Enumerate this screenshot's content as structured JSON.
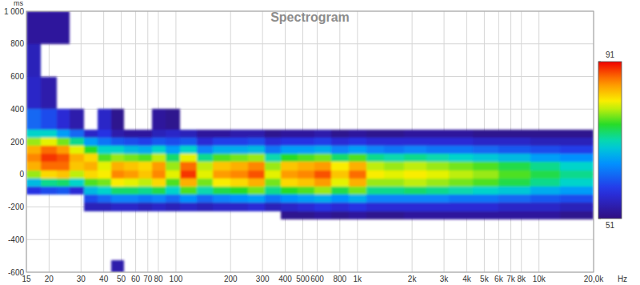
{
  "chart_data": {
    "type": "heatmap",
    "title": "Spectrogram",
    "xlabel": "Hz",
    "ylabel": "ms",
    "log": "x",
    "grid": true,
    "xlim": [
      15,
      20000
    ],
    "ylim": [
      -600,
      1000
    ],
    "xticks": [
      15,
      20,
      30,
      40,
      50,
      60,
      70,
      80,
      100,
      200,
      300,
      400,
      500,
      600,
      800,
      {
        "value": 1000,
        "label": "1k"
      },
      {
        "value": 2000,
        "label": "2k"
      },
      {
        "value": 3000,
        "label": "3k"
      },
      {
        "value": 4000,
        "label": "4k"
      },
      {
        "value": 5000,
        "label": "5k"
      },
      {
        "value": 6000,
        "label": "6k"
      },
      {
        "value": 7000,
        "label": "7k"
      },
      {
        "value": 8000,
        "label": "8k"
      },
      {
        "value": 10000,
        "label": "10k"
      },
      {
        "value": 20000,
        "label": "20,0k"
      }
    ],
    "yticks": [
      {
        "value": 1000,
        "label": "1 000"
      },
      800,
      600,
      400,
      200,
      0,
      -200,
      -400,
      -600
    ],
    "x_bins": [
      15,
      18,
      22,
      26,
      31,
      37,
      44,
      52,
      62,
      74,
      88,
      105,
      130,
      160,
      200,
      250,
      310,
      380,
      470,
      580,
      720,
      900,
      1120,
      1400,
      1800,
      2400,
      3200,
      4300,
      6000,
      9000,
      13000,
      20000
    ],
    "y_bins": [
      -600,
      -525,
      -275,
      -225,
      -175,
      -125,
      -75,
      -25,
      25,
      75,
      125,
      175,
      225,
      275,
      400,
      600,
      800,
      1000
    ],
    "values": [
      [
        null,
        null,
        null,
        null,
        null,
        58,
        68,
        78,
        84,
        86,
        84,
        78,
        70,
        62,
        56,
        55,
        53
      ],
      [
        null,
        null,
        null,
        null,
        null,
        60,
        72,
        82,
        87,
        89,
        87,
        80,
        70,
        60,
        54,
        null,
        53
      ],
      [
        null,
        null,
        null,
        null,
        null,
        61,
        73,
        83,
        87,
        88,
        85,
        77,
        66,
        57,
        null,
        null,
        53
      ],
      [
        null,
        null,
        null,
        null,
        null,
        57,
        70,
        79,
        83,
        84,
        80,
        72,
        62,
        54,
        null,
        null,
        null
      ],
      [
        null,
        null,
        null,
        55,
        60,
        68,
        76,
        82,
        84,
        82,
        75,
        66,
        56,
        null,
        null,
        null,
        null
      ],
      [
        null,
        null,
        null,
        55,
        62,
        70,
        77,
        81,
        80,
        76,
        70,
        63,
        58,
        56,
        null,
        null,
        null
      ],
      [
        54,
        null,
        null,
        56,
        64,
        73,
        81,
        86,
        84,
        78,
        70,
        61,
        54,
        52,
        null,
        null,
        null
      ],
      [
        null,
        null,
        null,
        56,
        64,
        73,
        80,
        85,
        83,
        77,
        68,
        60,
        53,
        null,
        null,
        null,
        null
      ],
      [
        null,
        null,
        null,
        55,
        63,
        72,
        79,
        83,
        82,
        76,
        67,
        59,
        53,
        null,
        null,
        null,
        null
      ],
      [
        null,
        null,
        null,
        56,
        64,
        74,
        82,
        86,
        85,
        79,
        70,
        61,
        55,
        53,
        null,
        null,
        null
      ],
      [
        null,
        null,
        null,
        55,
        62,
        70,
        76,
        80,
        78,
        73,
        66,
        60,
        56,
        52,
        null,
        null,
        null
      ],
      [
        null,
        null,
        null,
        56,
        65,
        76,
        84,
        89,
        87,
        80,
        70,
        61,
        55,
        null,
        null,
        null,
        null
      ],
      [
        null,
        null,
        null,
        55,
        62,
        71,
        77,
        80,
        79,
        72,
        64,
        57,
        53,
        null,
        null,
        null,
        null
      ],
      [
        null,
        null,
        null,
        56,
        64,
        74,
        81,
        85,
        83,
        76,
        67,
        59,
        53,
        null,
        null,
        null,
        null
      ],
      [
        null,
        null,
        null,
        56,
        65,
        75,
        82,
        86,
        84,
        77,
        67,
        59,
        54,
        null,
        null,
        null,
        null
      ],
      [
        null,
        null,
        null,
        57,
        66,
        77,
        84,
        88,
        86,
        78,
        68,
        60,
        54,
        null,
        null,
        null,
        null
      ],
      [
        null,
        null,
        null,
        55,
        63,
        72,
        77,
        80,
        78,
        71,
        63,
        57,
        52,
        null,
        null,
        null,
        null
      ],
      [
        null,
        null,
        52,
        56,
        65,
        75,
        82,
        85,
        83,
        75,
        66,
        58,
        53,
        null,
        null,
        null,
        null
      ],
      [
        null,
        null,
        52,
        57,
        66,
        76,
        83,
        86,
        84,
        76,
        66,
        58,
        53,
        null,
        null,
        null,
        null
      ],
      [
        null,
        null,
        53,
        58,
        67,
        78,
        85,
        88,
        85,
        77,
        67,
        59,
        54,
        null,
        null,
        null,
        null
      ],
      [
        null,
        null,
        52,
        57,
        65,
        74,
        80,
        83,
        81,
        73,
        64,
        57,
        52,
        null,
        null,
        null,
        null
      ],
      [
        null,
        null,
        53,
        58,
        67,
        77,
        84,
        87,
        84,
        76,
        66,
        58,
        53,
        null,
        null,
        null,
        null
      ],
      [
        null,
        null,
        52,
        57,
        64,
        72,
        78,
        81,
        79,
        72,
        64,
        57,
        52,
        null,
        null,
        null,
        null
      ],
      [
        null,
        null,
        52,
        57,
        64,
        72,
        78,
        80,
        78,
        71,
        63,
        57,
        52,
        null,
        null,
        null,
        null
      ],
      [
        null,
        null,
        53,
        57,
        64,
        73,
        79,
        81,
        79,
        72,
        64,
        57,
        53,
        null,
        null,
        null,
        null
      ],
      [
        null,
        null,
        53,
        57,
        64,
        72,
        78,
        80,
        78,
        71,
        63,
        57,
        53,
        null,
        null,
        null,
        null
      ],
      [
        null,
        null,
        53,
        57,
        63,
        71,
        77,
        79,
        77,
        70,
        63,
        57,
        53,
        null,
        null,
        null,
        null
      ],
      [
        null,
        null,
        53,
        57,
        63,
        70,
        76,
        78,
        76,
        69,
        62,
        56,
        52,
        null,
        null,
        null,
        null
      ],
      [
        null,
        null,
        53,
        56,
        62,
        69,
        74,
        76,
        74,
        68,
        61,
        56,
        52,
        null,
        null,
        null,
        null
      ],
      [
        null,
        null,
        53,
        56,
        61,
        67,
        72,
        74,
        72,
        66,
        60,
        55,
        52,
        null,
        null,
        null,
        null
      ],
      [
        null,
        null,
        52,
        55,
        60,
        66,
        70,
        72,
        70,
        65,
        59,
        55,
        52,
        null,
        null,
        null,
        null
      ]
    ],
    "color_range": [
      51,
      91
    ],
    "color_ticks": [
      51,
      91
    ]
  }
}
